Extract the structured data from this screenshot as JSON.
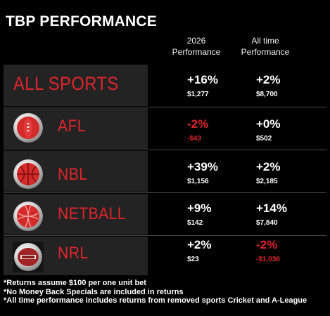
{
  "title": "TBP PERFORMANCE",
  "columns": {
    "c1": [
      "2026",
      "Performance"
    ],
    "c2": [
      "All time",
      "Performance"
    ]
  },
  "rows": [
    {
      "name": "ALL SPORTS",
      "icon": "none",
      "p1": "+16%",
      "a1": "$1,277",
      "p2": "+2%",
      "a2": "$8,700"
    },
    {
      "name": "AFL",
      "icon": "afl-ball-icon",
      "p1": "-2%",
      "a1": "-$43",
      "p2": "+0%",
      "a2": "$502"
    },
    {
      "name": "NBL",
      "icon": "basketball-icon",
      "p1": "+39%",
      "a1": "$1,156",
      "p2": "+2%",
      "a2": "$2,185"
    },
    {
      "name": "NETBALL",
      "icon": "netball-icon",
      "p1": "+9%",
      "a1": "$142",
      "p2": "+14%",
      "a2": "$7,840"
    },
    {
      "name": "NRL",
      "icon": "nrl-ball-icon",
      "p1": "+2%",
      "a1": "$23",
      "p2": "-2%",
      "a2": "-$1,036"
    }
  ],
  "notes": [
    "*Returns assume $100 per one unit bet",
    "*No Money Back Specials are included in returns",
    "*All time performance includes returns from removed sports Cricket and A-League"
  ],
  "colors": {
    "accent_red": "#e0242b",
    "panel": "#232323",
    "background": "#000000"
  }
}
